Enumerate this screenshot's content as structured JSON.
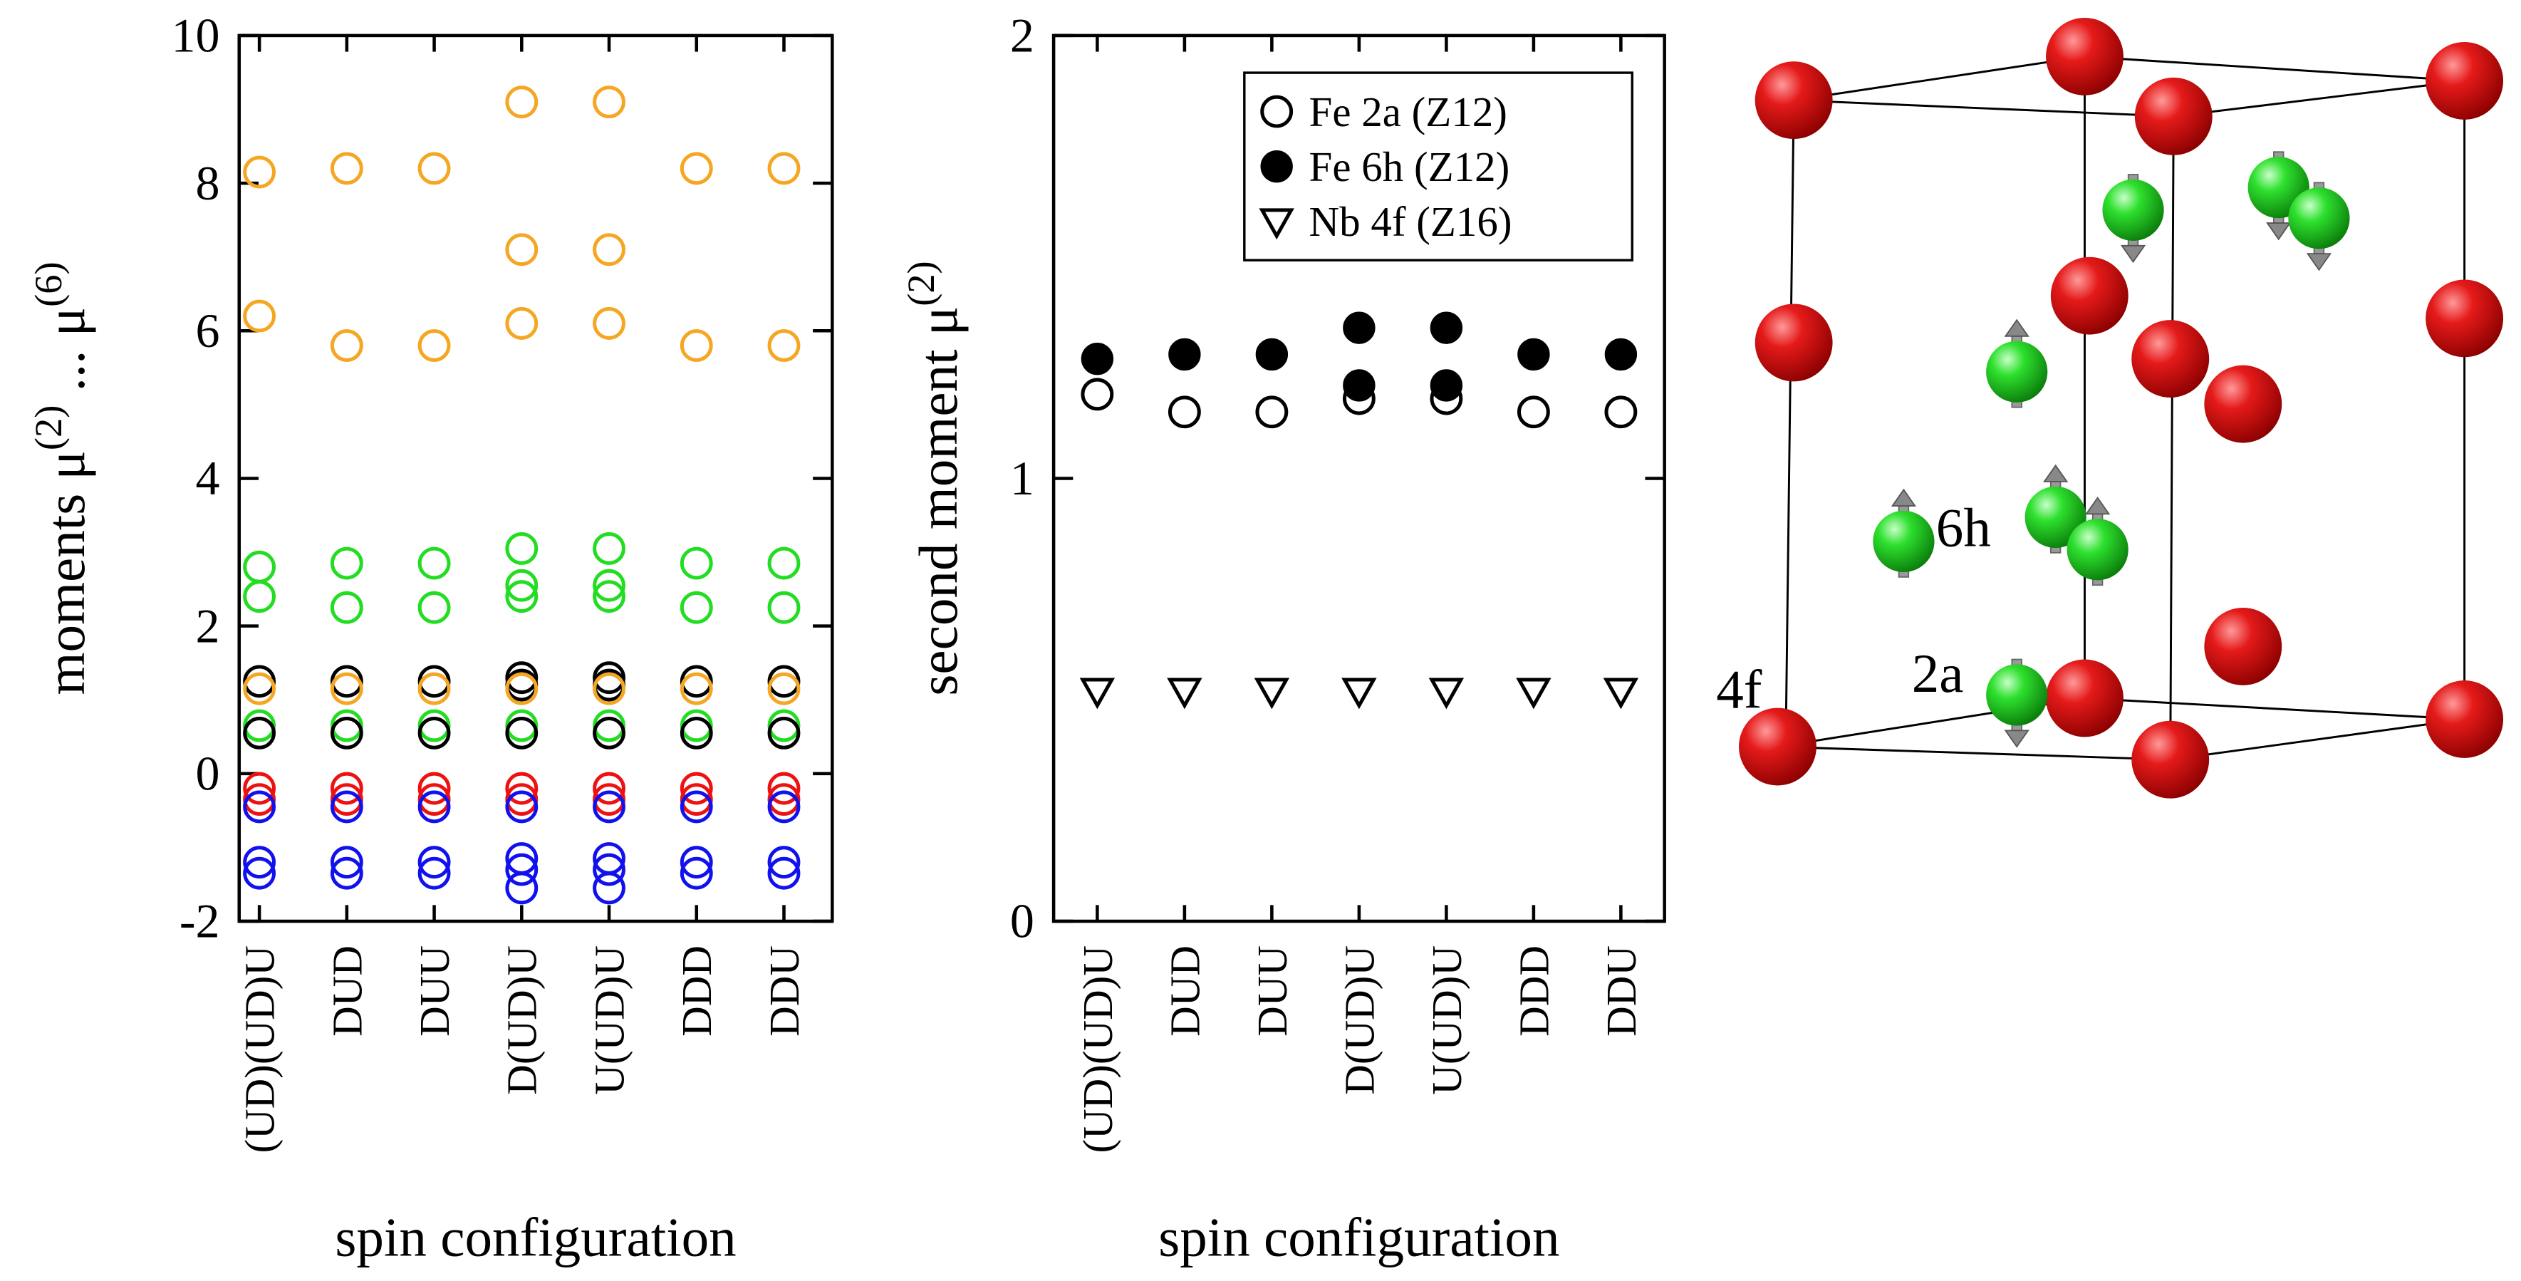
{
  "chart_data": [
    {
      "type": "scatter",
      "ylabel": [
        "moments μ",
        "(2)",
        " ... μ",
        "(6)"
      ],
      "xlabel": "spin configuration",
      "categories": [
        "(UD)(UD)U",
        "DUD",
        "DUU",
        "D(UD)U",
        "U(UD)U",
        "DDD",
        "DDU"
      ],
      "ylim": [
        -2,
        10
      ],
      "yticks": [
        -2,
        0,
        2,
        4,
        6,
        8,
        10
      ],
      "series": [
        {
          "color": "#f5a623",
          "values": [
            8.15,
            8.2,
            8.2,
            9.1,
            9.1,
            8.2,
            8.2
          ]
        },
        {
          "color": "#f5a623",
          "values": [
            6.2,
            5.8,
            5.8,
            7.1,
            7.1,
            5.8,
            5.8
          ]
        },
        {
          "color": "#f5a623",
          "values": [
            null,
            null,
            null,
            6.1,
            6.1,
            null,
            null
          ]
        },
        {
          "color": "#22dd22",
          "values": [
            2.8,
            2.85,
            2.85,
            3.05,
            3.05,
            2.85,
            2.85
          ]
        },
        {
          "color": "#22dd22",
          "values": [
            2.4,
            2.25,
            2.25,
            2.55,
            2.55,
            2.25,
            2.25
          ]
        },
        {
          "color": "#22dd22",
          "values": [
            null,
            null,
            null,
            2.4,
            2.4,
            null,
            null
          ]
        },
        {
          "color": "#22dd22",
          "values": [
            0.65,
            0.65,
            0.65,
            0.65,
            0.65,
            0.65,
            0.65
          ]
        },
        {
          "color": "#000000",
          "values": [
            1.25,
            1.25,
            1.25,
            1.3,
            1.3,
            1.25,
            1.25
          ]
        },
        {
          "color": "#000000",
          "values": [
            null,
            null,
            null,
            1.2,
            1.2,
            null,
            null
          ]
        },
        {
          "color": "#f5a623",
          "values": [
            1.15,
            1.15,
            1.15,
            1.15,
            1.15,
            1.15,
            1.15
          ]
        },
        {
          "color": "#000000",
          "values": [
            0.55,
            0.55,
            0.55,
            0.55,
            0.55,
            0.55,
            0.55
          ]
        },
        {
          "color": "#ee1111",
          "values": [
            -0.2,
            -0.2,
            -0.2,
            -0.2,
            -0.2,
            -0.2,
            -0.2
          ]
        },
        {
          "color": "#ee1111",
          "values": [
            -0.35,
            -0.35,
            -0.35,
            -0.35,
            -0.35,
            -0.35,
            -0.35
          ]
        },
        {
          "color": "#1111ee",
          "values": [
            -0.45,
            -0.45,
            -0.45,
            -0.45,
            -0.45,
            -0.45,
            -0.45
          ]
        },
        {
          "color": "#1111ee",
          "values": [
            -1.2,
            -1.2,
            -1.2,
            -1.15,
            -1.15,
            -1.2,
            -1.2
          ]
        },
        {
          "color": "#1111ee",
          "values": [
            -1.35,
            -1.35,
            -1.35,
            -1.3,
            -1.3,
            -1.35,
            -1.35
          ]
        },
        {
          "color": "#1111ee",
          "values": [
            null,
            null,
            null,
            -1.55,
            -1.55,
            null,
            null
          ]
        }
      ]
    },
    {
      "type": "scatter",
      "ylabel": [
        "second moment μ",
        "(2)"
      ],
      "xlabel": "spin configuration",
      "categories": [
        "(UD)(UD)U",
        "DUD",
        "DUU",
        "D(UD)U",
        "U(UD)U",
        "DDD",
        "DDU"
      ],
      "ylim": [
        0,
        2
      ],
      "yticks": [
        0,
        1,
        2
      ],
      "legend": "upper right",
      "series": [
        {
          "name": "Fe 2a (Z12)",
          "marker": "circle-open",
          "color": "#000000",
          "values": [
            1.19,
            1.15,
            1.15,
            1.18,
            1.18,
            1.15,
            1.15
          ]
        },
        {
          "name": "Fe 6h (Z12)",
          "marker": "circle-filled",
          "color": "#000000",
          "values": [
            1.27,
            1.28,
            1.28,
            1.34,
            1.34,
            1.28,
            1.28
          ]
        },
        {
          "name": "Nb 4f (Z16)",
          "marker": "triangle-open",
          "color": "#000000",
          "values": [
            0.52,
            0.52,
            0.52,
            0.52,
            0.52,
            0.52,
            0.52
          ]
        },
        {
          "marker": "circle-filled",
          "color": "#000000",
          "values": [
            null,
            null,
            null,
            1.21,
            1.21,
            null,
            null
          ]
        }
      ]
    }
  ],
  "structure": {
    "labels": [
      "6h",
      "2a",
      "4f"
    ]
  }
}
